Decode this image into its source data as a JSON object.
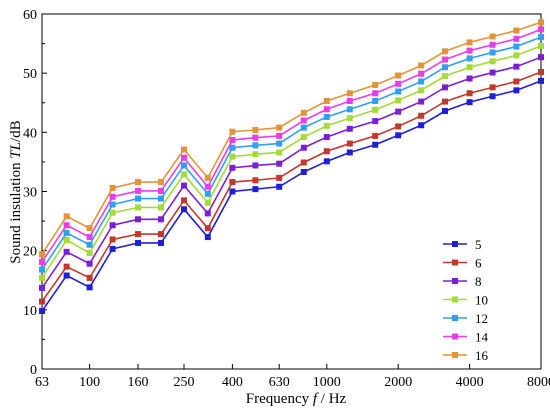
{
  "chart_data": {
    "type": "line",
    "xlabel_prefix": "Frequency ",
    "xlabel_var": "f",
    "xlabel_suffix": " / Hz",
    "ylabel_prefix": "Sound insulation ",
    "ylabel_var": "TL",
    "ylabel_suffix": "/dB",
    "x_scale": "log",
    "xlim": [
      63,
      8000
    ],
    "ylim": [
      0,
      60
    ],
    "x_ticks": [
      63,
      100,
      160,
      250,
      400,
      630,
      1000,
      2000,
      4000,
      8000
    ],
    "x_tick_labels": [
      "63",
      "100",
      "160",
      "250",
      "400",
      "630",
      "1000",
      "2000",
      "4000",
      "8000"
    ],
    "y_ticks": [
      0,
      10,
      20,
      30,
      40,
      50,
      60
    ],
    "y_tick_labels": [
      "0",
      "10",
      "20",
      "30",
      "40",
      "50",
      "60"
    ],
    "x": [
      63,
      80,
      100,
      125,
      160,
      200,
      250,
      315,
      400,
      500,
      630,
      800,
      1000,
      1250,
      1600,
      2000,
      2500,
      3150,
      4000,
      5000,
      6300,
      8000
    ],
    "legend_position": "lower-right",
    "series": [
      {
        "name": "5",
        "color": "#1f1fd6",
        "values": [
          9.8,
          15.8,
          13.8,
          20.3,
          21.3,
          21.3,
          27.0,
          22.3,
          30.0,
          30.4,
          30.8,
          33.3,
          35.1,
          36.6,
          37.9,
          39.5,
          41.2,
          43.6,
          45.1,
          46.1,
          47.1,
          48.7
        ]
      },
      {
        "name": "6",
        "color": "#c0392b",
        "values": [
          11.4,
          17.3,
          15.4,
          21.9,
          22.8,
          22.8,
          28.5,
          23.8,
          31.6,
          31.9,
          32.3,
          34.9,
          36.8,
          38.1,
          39.4,
          41.0,
          42.8,
          45.2,
          46.6,
          47.6,
          48.6,
          50.2
        ]
      },
      {
        "name": "8",
        "color": "#7b1fd6",
        "values": [
          13.7,
          19.8,
          17.8,
          24.3,
          25.3,
          25.3,
          31.0,
          26.3,
          34.0,
          34.4,
          34.7,
          37.4,
          39.2,
          40.6,
          41.9,
          43.5,
          45.2,
          47.6,
          49.1,
          50.1,
          51.1,
          52.7
        ]
      },
      {
        "name": "10",
        "color": "#a6d93a",
        "values": [
          15.4,
          21.8,
          19.6,
          26.4,
          27.3,
          27.3,
          32.9,
          28.1,
          35.9,
          36.3,
          36.6,
          39.2,
          41.1,
          42.4,
          43.8,
          45.4,
          47.1,
          49.5,
          51.0,
          52.0,
          53.0,
          54.6
        ]
      },
      {
        "name": "12",
        "color": "#2fa0f0",
        "values": [
          16.8,
          23.0,
          21.0,
          27.8,
          28.8,
          28.8,
          34.4,
          29.6,
          37.4,
          37.8,
          38.1,
          40.8,
          42.6,
          43.9,
          45.3,
          46.9,
          48.6,
          51.0,
          52.5,
          53.5,
          54.5,
          56.1
        ]
      },
      {
        "name": "14",
        "color": "#e83de8",
        "values": [
          18.1,
          24.3,
          22.3,
          29.1,
          30.1,
          30.1,
          35.7,
          30.8,
          38.7,
          39.1,
          39.4,
          42.0,
          43.9,
          45.3,
          46.6,
          48.2,
          49.9,
          52.3,
          53.8,
          54.8,
          55.8,
          57.4
        ]
      },
      {
        "name": "16",
        "color": "#e0953a",
        "values": [
          19.4,
          25.8,
          23.8,
          30.6,
          31.6,
          31.6,
          37.1,
          32.3,
          40.1,
          40.4,
          40.8,
          43.3,
          45.3,
          46.6,
          48.0,
          49.6,
          51.3,
          53.7,
          55.2,
          56.2,
          57.2,
          58.6
        ]
      }
    ]
  }
}
